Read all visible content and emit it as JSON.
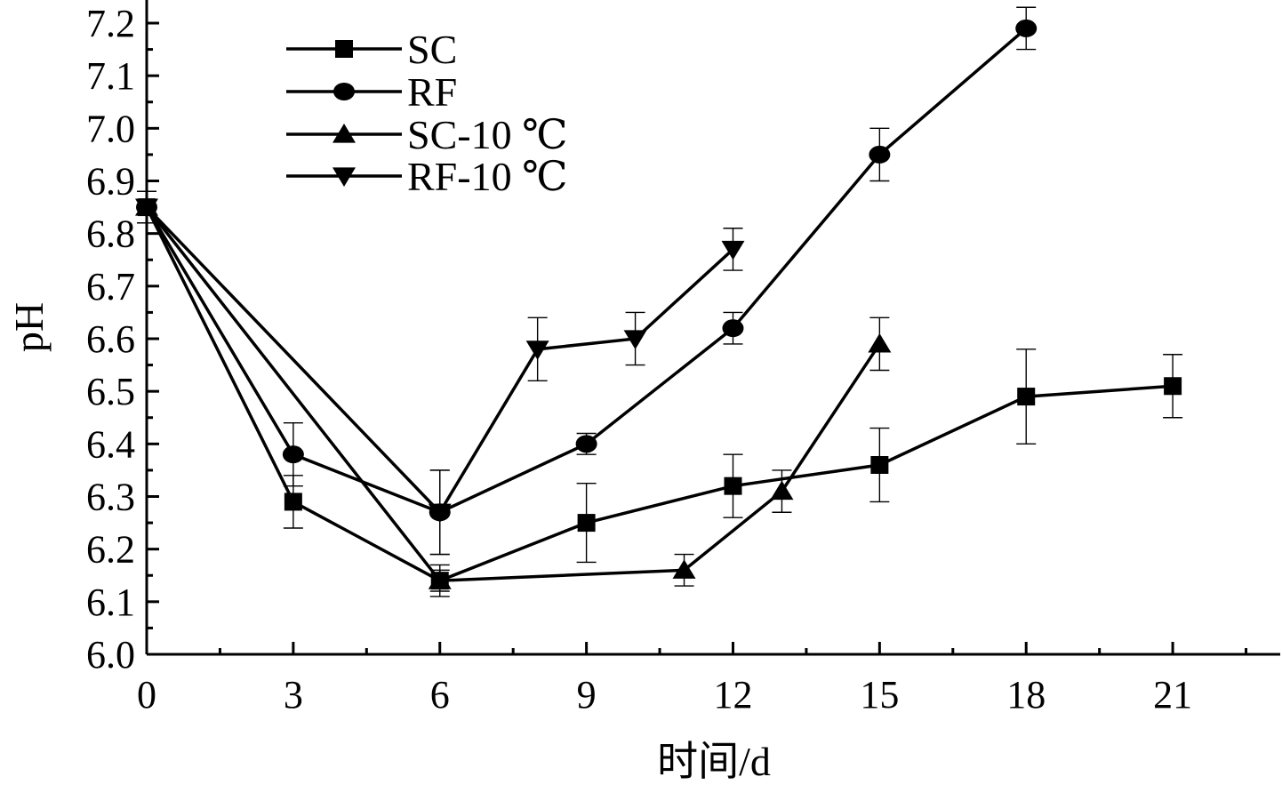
{
  "chart_data": {
    "type": "line",
    "xlabel": "时间/d",
    "ylabel": "pH",
    "xlim": [
      0,
      23.2
    ],
    "ylim": [
      6.0,
      7.2
    ],
    "xticks": [
      0,
      3,
      6,
      9,
      12,
      15,
      18,
      21
    ],
    "xtick_labels": [
      "0",
      "3",
      "6",
      "9",
      "12",
      "15",
      "18",
      "21"
    ],
    "yticks": [
      6.0,
      6.1,
      6.2,
      6.3,
      6.4,
      6.5,
      6.6,
      6.7,
      6.8,
      6.9,
      7.0,
      7.1,
      7.2
    ],
    "ytick_labels": [
      "6.0",
      "6.1",
      "6.2",
      "6.3",
      "6.4",
      "6.5",
      "6.6",
      "6.7",
      "6.8",
      "6.9",
      "7.0",
      "7.1",
      "7.2"
    ],
    "grid": false,
    "legend_position": "top-left",
    "series": [
      {
        "name": "SC",
        "marker": "square",
        "x": [
          0,
          3,
          6,
          9,
          12,
          15,
          18,
          21
        ],
        "y": [
          6.85,
          6.29,
          6.14,
          6.25,
          6.32,
          6.36,
          6.49,
          6.51
        ],
        "err": [
          0.03,
          0.05,
          0.02,
          0.075,
          0.06,
          0.07,
          0.09,
          0.06
        ]
      },
      {
        "name": "RF",
        "marker": "circle",
        "x": [
          0,
          3,
          6,
          9,
          12,
          15,
          18
        ],
        "y": [
          6.85,
          6.38,
          6.27,
          6.4,
          6.62,
          6.95,
          7.19
        ],
        "err": [
          0.03,
          0.06,
          0.08,
          0.02,
          0.03,
          0.05,
          0.04
        ]
      },
      {
        "name": "SC-10 ℃",
        "marker": "triangle-up",
        "x": [
          0,
          6,
          11,
          13,
          15
        ],
        "y": [
          6.85,
          6.14,
          6.16,
          6.31,
          6.59
        ],
        "err": [
          0.03,
          0.03,
          0.03,
          0.04,
          0.05
        ]
      },
      {
        "name": "RF-10 ℃",
        "marker": "triangle-down",
        "x": [
          0,
          6,
          8,
          10,
          12
        ],
        "y": [
          6.85,
          6.27,
          6.58,
          6.6,
          6.77
        ],
        "err": [
          0.03,
          0.08,
          0.06,
          0.05,
          0.04
        ]
      }
    ]
  }
}
